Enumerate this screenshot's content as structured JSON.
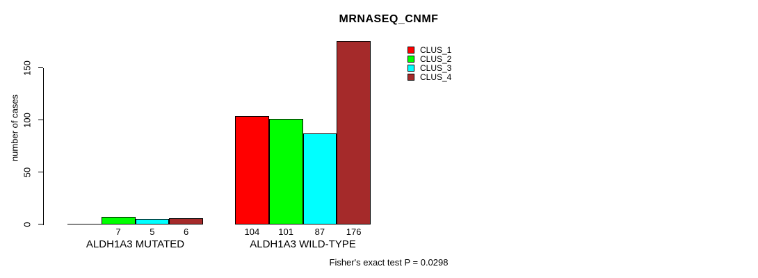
{
  "chart_data": {
    "type": "bar",
    "title": "MRNASEQ_CNMF",
    "ylabel": "number of cases",
    "yticks": [
      0,
      50,
      100,
      150
    ],
    "ylim": [
      0,
      176
    ],
    "grid": false,
    "legend_position": "top-right",
    "categories": [
      "ALDH1A3 MUTATED",
      "ALDH1A3 WILD-TYPE"
    ],
    "series": [
      {
        "name": "CLUS_1",
        "color": "#FF0000",
        "values": [
          0,
          104
        ]
      },
      {
        "name": "CLUS_2",
        "color": "#00FF00",
        "values": [
          7,
          101
        ]
      },
      {
        "name": "CLUS_3",
        "color": "#00FFFF",
        "values": [
          5,
          87
        ]
      },
      {
        "name": "CLUS_4",
        "color": "#A52A2A",
        "values": [
          6,
          176
        ]
      }
    ],
    "bar_value_labels": {
      "ALDH1A3 MUTATED": [
        "",
        "7",
        "5",
        "6"
      ],
      "ALDH1A3 WILD-TYPE": [
        "104",
        "101",
        "87",
        "176"
      ]
    },
    "annotation": "Fisher's exact test P = 0.0298"
  }
}
